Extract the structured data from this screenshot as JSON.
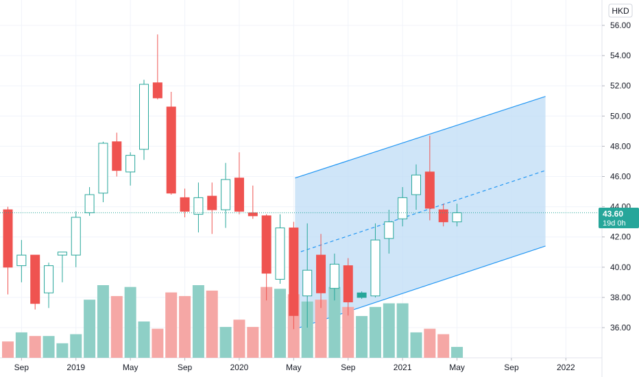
{
  "currency": "HKD",
  "last_price": "43.60",
  "countdown": "19d 0h",
  "chart_data": {
    "type": "candlestick",
    "interval": "1M",
    "y_axis": {
      "ticks": [
        "36.00",
        "38.00",
        "40.00",
        "42.00",
        "44.00",
        "46.00",
        "48.00",
        "50.00",
        "52.00",
        "54.00",
        "56.00"
      ],
      "position": "right"
    },
    "x_axis": {
      "ticks": [
        "Sep",
        "2019",
        "May",
        "Sep",
        "2020",
        "May",
        "Sep",
        "2021",
        "May",
        "Sep",
        "2022"
      ]
    },
    "last_price": 43.6,
    "colors": {
      "up": "#26a69a",
      "down": "#ef5350",
      "up_volume": "#8ecfc6",
      "down_volume": "#f5a7a5",
      "channel_fill": "#bfdcf6",
      "channel_line": "#2196f3"
    },
    "candles": [
      {
        "i": 0,
        "o": 43.8,
        "h": 44.0,
        "l": 38.2,
        "c": 40.0
      },
      {
        "i": 1,
        "o": 40.1,
        "h": 41.8,
        "l": 39.0,
        "c": 40.8
      },
      {
        "i": 2,
        "o": 40.8,
        "h": 40.8,
        "l": 37.2,
        "c": 37.6
      },
      {
        "i": 3,
        "o": 38.3,
        "h": 40.3,
        "l": 37.3,
        "c": 40.1
      },
      {
        "i": 4,
        "o": 40.8,
        "h": 41.0,
        "l": 39.0,
        "c": 41.0
      },
      {
        "i": 5,
        "o": 40.8,
        "h": 43.7,
        "l": 40.0,
        "c": 43.3
      },
      {
        "i": 6,
        "o": 43.6,
        "h": 45.3,
        "l": 43.4,
        "c": 44.8
      },
      {
        "i": 7,
        "o": 44.9,
        "h": 48.3,
        "l": 44.3,
        "c": 48.2
      },
      {
        "i": 8,
        "o": 48.3,
        "h": 48.9,
        "l": 46.0,
        "c": 46.4
      },
      {
        "i": 9,
        "o": 46.3,
        "h": 47.6,
        "l": 45.4,
        "c": 47.4
      },
      {
        "i": 10,
        "o": 47.8,
        "h": 52.4,
        "l": 47.1,
        "c": 52.1
      },
      {
        "i": 11,
        "o": 52.2,
        "h": 55.4,
        "l": 51.1,
        "c": 51.2
      },
      {
        "i": 12,
        "o": 50.6,
        "h": 51.6,
        "l": 44.8,
        "c": 44.9
      },
      {
        "i": 13,
        "o": 44.6,
        "h": 45.2,
        "l": 43.3,
        "c": 43.7
      },
      {
        "i": 14,
        "o": 43.5,
        "h": 45.6,
        "l": 42.3,
        "c": 44.6
      },
      {
        "i": 15,
        "o": 44.7,
        "h": 45.6,
        "l": 42.2,
        "c": 43.8
      },
      {
        "i": 16,
        "o": 43.8,
        "h": 46.9,
        "l": 42.6,
        "c": 45.8
      },
      {
        "i": 17,
        "o": 45.9,
        "h": 47.6,
        "l": 43.5,
        "c": 43.7
      },
      {
        "i": 18,
        "o": 43.6,
        "h": 45.4,
        "l": 43.2,
        "c": 43.4
      },
      {
        "i": 19,
        "o": 43.4,
        "h": 43.5,
        "l": 37.8,
        "c": 39.6
      },
      {
        "i": 20,
        "o": 39.2,
        "h": 43.5,
        "l": 38.9,
        "c": 42.6
      },
      {
        "i": 21,
        "o": 42.6,
        "h": 43.0,
        "l": 35.9,
        "c": 36.8
      },
      {
        "i": 22,
        "o": 38.1,
        "h": 42.9,
        "l": 36.0,
        "c": 39.8
      },
      {
        "i": 23,
        "o": 40.8,
        "h": 42.2,
        "l": 37.3,
        "c": 38.3
      },
      {
        "i": 24,
        "o": 38.6,
        "h": 40.9,
        "l": 37.8,
        "c": 40.2
      },
      {
        "i": 25,
        "o": 40.1,
        "h": 40.6,
        "l": 36.8,
        "c": 37.7
      },
      {
        "i": 26,
        "o": 38.0,
        "h": 38.4,
        "l": 37.9,
        "c": 38.3
      },
      {
        "i": 27,
        "o": 38.1,
        "h": 42.9,
        "l": 38.0,
        "c": 41.8
      },
      {
        "i": 28,
        "o": 41.9,
        "h": 43.8,
        "l": 40.9,
        "c": 43.0
      },
      {
        "i": 29,
        "o": 43.2,
        "h": 45.3,
        "l": 42.7,
        "c": 44.6
      },
      {
        "i": 30,
        "o": 44.8,
        "h": 46.8,
        "l": 43.8,
        "c": 46.1
      },
      {
        "i": 31,
        "o": 46.3,
        "h": 48.7,
        "l": 43.1,
        "c": 43.9
      },
      {
        "i": 32,
        "o": 43.8,
        "h": 44.2,
        "l": 42.7,
        "c": 43.0
      },
      {
        "i": 33,
        "o": 43.0,
        "h": 44.2,
        "l": 42.7,
        "c": 43.6
      }
    ],
    "volumes": [
      0.9,
      1.4,
      1.2,
      1.2,
      0.8,
      1.3,
      3.2,
      4.0,
      3.4,
      3.9,
      2.0,
      1.6,
      3.6,
      3.4,
      4.0,
      3.7,
      1.7,
      2.1,
      1.7,
      3.9,
      3.8,
      3.5,
      3.1,
      3.2,
      3.9,
      2.8,
      2.3,
      2.8,
      3.0,
      3.0,
      1.4,
      1.6,
      1.3,
      0.6
    ],
    "channel": {
      "start_index": 21.1,
      "end_index": 39.5,
      "upper": [
        45.9,
        51.3
      ],
      "middle": [
        40.9,
        46.4
      ],
      "lower": [
        35.9,
        41.4
      ]
    }
  }
}
